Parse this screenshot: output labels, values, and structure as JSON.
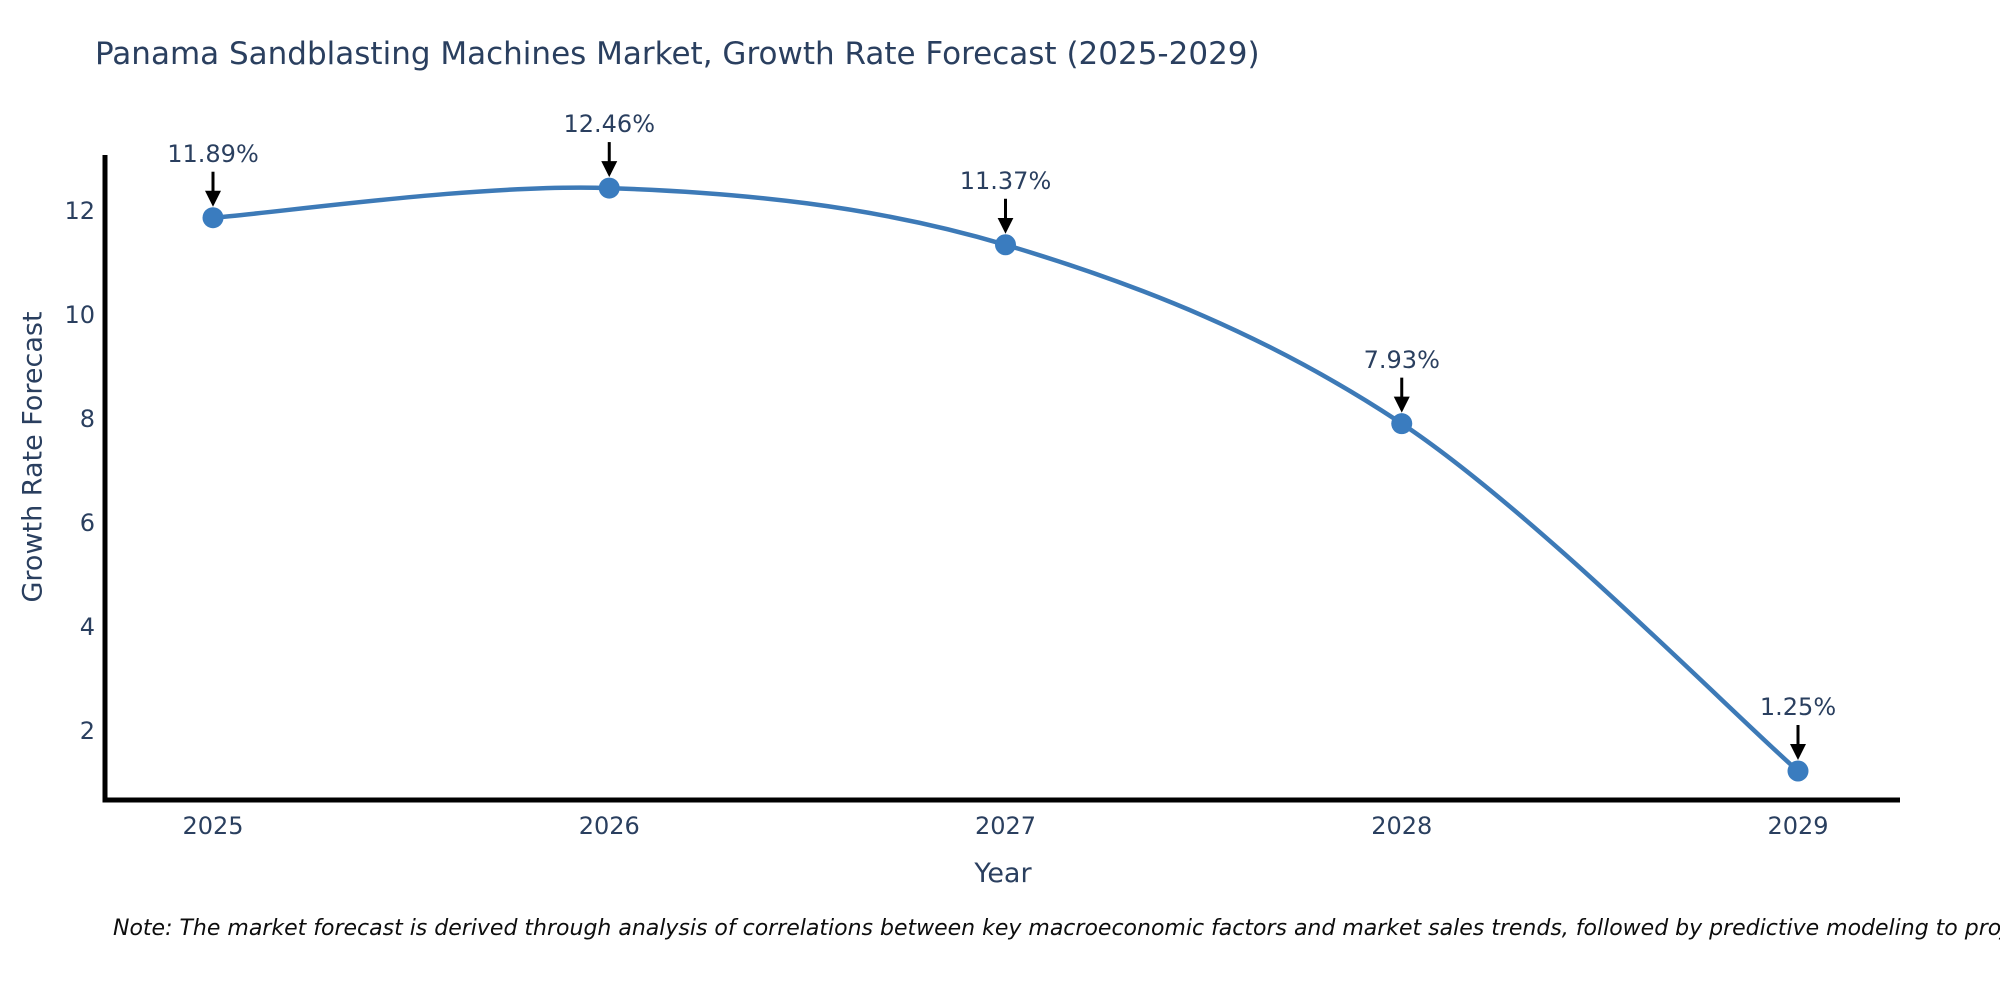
{
  "page": {
    "background": "#ffffff"
  },
  "chart_data": {
    "type": "line",
    "title": "Panama Sandblasting Machines Market, Growth Rate Forecast (2025-2029)",
    "xlabel": "Year",
    "ylabel": "Growth Rate Forecast",
    "categories": [
      "2025",
      "2026",
      "2027",
      "2028",
      "2029"
    ],
    "series": [
      {
        "name": "Growth Rate Forecast",
        "values": [
          11.89,
          12.46,
          11.37,
          7.93,
          1.25
        ],
        "point_labels": [
          "11.89%",
          "12.46%",
          "11.37%",
          "7.93%",
          "1.25%"
        ]
      }
    ],
    "yticks": [
      2,
      4,
      6,
      8,
      10,
      12
    ],
    "ylim": [
      0.69,
      13.25
    ],
    "line_shape": "spline",
    "markers": true,
    "grid": false,
    "legend_position": "none",
    "annotation_arrows": true
  },
  "footnote": {
    "text": "Note: The market forecast is derived through analysis of correlations between key macroeconomic factors and market sales trends, followed by predictive modeling to project future sales"
  },
  "colors": {
    "line": "#3d7ab7",
    "marker": "#3a7cbf",
    "text": "#2a3f5f",
    "axis_line": "#000000",
    "arrow": "#000000",
    "note_text": "#0d0d0d",
    "background": "#ffffff"
  }
}
